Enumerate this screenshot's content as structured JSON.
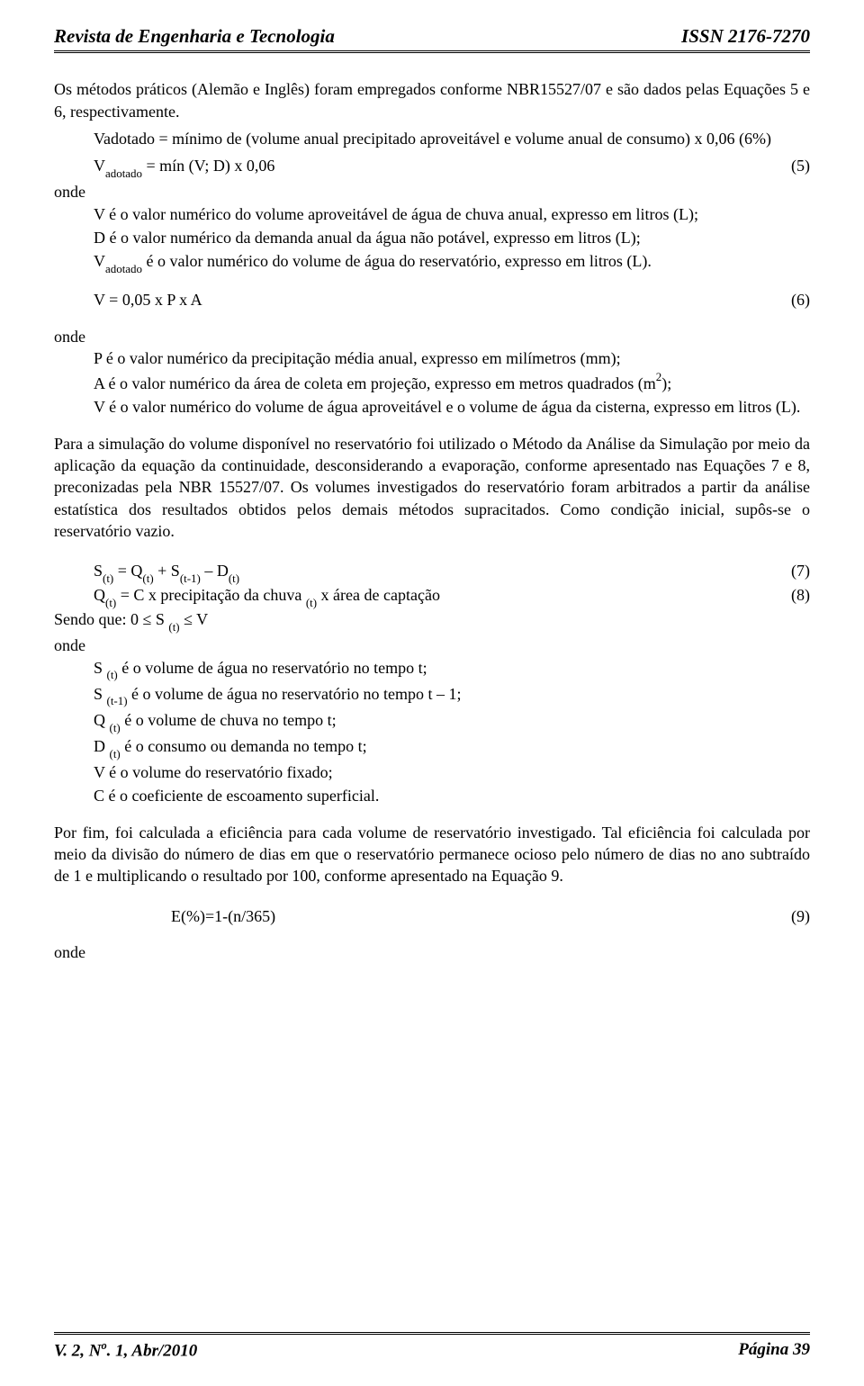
{
  "header": {
    "journal": "Revista de Engenharia e Tecnologia",
    "issn": "ISSN 2176-7270"
  },
  "p1": "Os métodos práticos (Alemão e Inglês) foram empregados conforme NBR15527/07 e são dados pelas Equações 5 e 6, respectivamente.",
  "p2": "Vadotado = mínimo de (volume anual precipitado aproveitável e volume anual de consumo) x 0,06 (6%)",
  "eq5": "= mín (V; D) x 0,06",
  "eq5_num": "(5)",
  "onde": "onde",
  "def5_1": "V é o valor numérico do volume aproveitável de água de chuva anual, expresso em litros (L);",
  "def5_2": "D é o valor numérico da demanda anual da água não potável, expresso em litros (L);",
  "def5_3_a": "V",
  "def5_3_b": " é o valor numérico do volume de água do reservatório, expresso em litros (L).",
  "eq6": "V = 0,05 x P x A",
  "eq6_num": "(6)",
  "def6_1": "P é o valor numérico da precipitação média anual, expresso em milímetros (mm);",
  "def6_2a": "A é o valor numérico da área de coleta em projeção, expresso em metros quadrados (m",
  "def6_2b": ");",
  "def6_3": "V é o valor numérico do volume de água aproveitável e o volume de água da cisterna, expresso em litros (L).",
  "p3": "Para a simulação do volume disponível no reservatório foi utilizado o Método da Análise da Simulação por meio da aplicação da equação da continuidade, desconsiderando a evaporação, conforme apresentado nas Equações 7 e 8, preconizadas pela NBR 15527/07. Os volumes investigados do reservatório foram arbitrados a partir da análise estatística dos resultados obtidos pelos demais métodos supracitados. Como condição inicial, supôs-se o reservatório vazio.",
  "eq7_a": "S",
  "eq7_b": " = Q",
  "eq7_c": " + S",
  "eq7_d": " – D",
  "eq7_num": "(7)",
  "eq8_a": "Q",
  "eq8_b": " = C x precipitação da chuva ",
  "eq8_c": " x área de captação",
  "eq8_num": "(8)",
  "sendo_a": "Sendo que: 0 ≤ S ",
  "sendo_b": " ≤ V",
  "def78_1a": "S ",
  "def78_1b": " é o volume de água no reservatório no tempo t;",
  "def78_2a": "S ",
  "def78_2b": " é o volume de água no reservatório no tempo t – 1;",
  "def78_3a": "Q ",
  "def78_3b": " é o volume de chuva no tempo t;",
  "def78_4a": "D ",
  "def78_4b": " é o consumo ou demanda no tempo t;",
  "def78_5": "V é o volume do reservatório fixado;",
  "def78_6": "C é o coeficiente de escoamento superficial.",
  "p4": "Por fim, foi calculada a eficiência para cada volume de reservatório investigado. Tal eficiência foi calculada por meio da divisão do número de dias em que o reservatório permanece ocioso pelo número de dias no ano subtraído de 1 e multiplicando o resultado por 100, conforme apresentado na Equação 9.",
  "eq9": "E(%)=1-(n/365)",
  "eq9_num": "(9)",
  "sub_adotado": "adotado",
  "sub_t": "(t)",
  "sub_t1": "(t-1)",
  "sup_2": "2",
  "footer": {
    "left_a": "V. 2, N",
    "left_b": ". 1, Abr/2010",
    "left_sup": "o",
    "right": "Página 39"
  }
}
